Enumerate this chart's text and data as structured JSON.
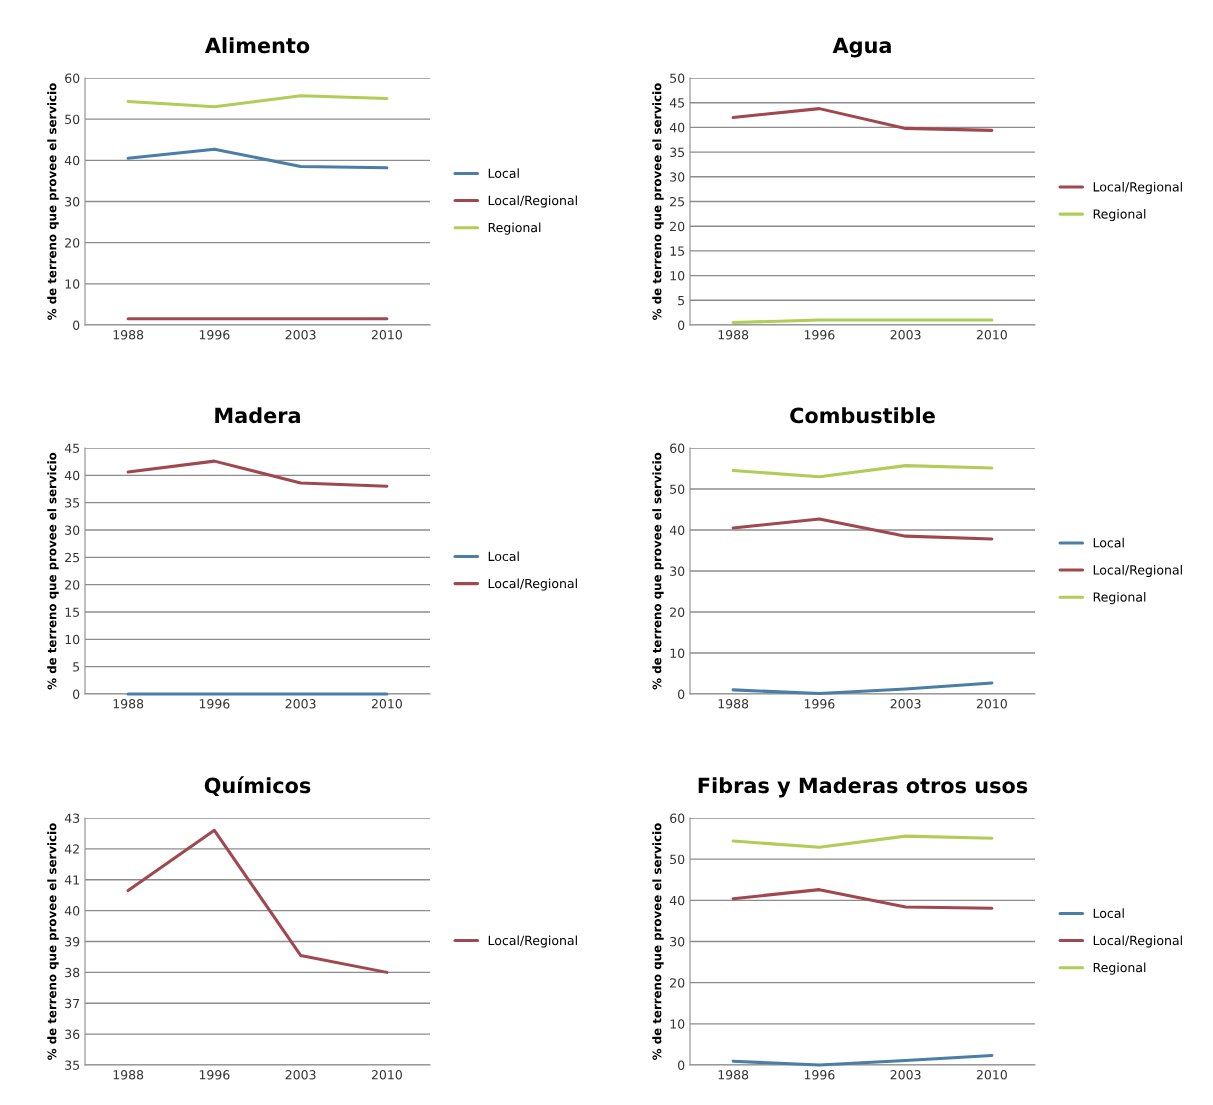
{
  "chart_data": [
    {
      "type": "line",
      "title": "Alimento",
      "ylabel": "% de terreno que provee el servicio",
      "categories": [
        "1988",
        "1996",
        "2003",
        "2010"
      ],
      "ylim": [
        0,
        60
      ],
      "yticks": [
        0,
        10,
        20,
        30,
        40,
        50,
        60
      ],
      "grid": "y",
      "legend": "right",
      "series": [
        {
          "name": "Local",
          "color": "#4a7ea6",
          "values": [
            40.5,
            42.7,
            38.5,
            38.2
          ]
        },
        {
          "name": "Local/Regional",
          "color": "#a0484f",
          "values": [
            1.5,
            1.5,
            1.5,
            1.5
          ]
        },
        {
          "name": "Regional",
          "color": "#b2cc58",
          "values": [
            54.3,
            53,
            55.7,
            55
          ]
        }
      ]
    },
    {
      "type": "line",
      "title": "Agua",
      "ylabel": "% de terreno que provee el servicio",
      "categories": [
        "1988",
        "1996",
        "2003",
        "2010"
      ],
      "ylim": [
        0,
        50
      ],
      "yticks": [
        0,
        5,
        10,
        15,
        20,
        25,
        30,
        35,
        40,
        45,
        50
      ],
      "grid": "y",
      "legend": "right",
      "series": [
        {
          "name": "Local/Regional",
          "color": "#a0484f",
          "values": [
            42,
            43.8,
            39.8,
            39.4
          ]
        },
        {
          "name": "Regional",
          "color": "#b2cc58",
          "values": [
            0.5,
            1,
            1,
            1
          ]
        }
      ]
    },
    {
      "type": "line",
      "title": "Madera",
      "ylabel": "% de terreno que provee el servicio",
      "categories": [
        "1988",
        "1996",
        "2003",
        "2010"
      ],
      "ylim": [
        0,
        45
      ],
      "yticks": [
        0,
        5,
        10,
        15,
        20,
        25,
        30,
        35,
        40,
        45
      ],
      "grid": "y",
      "legend": "right",
      "series": [
        {
          "name": "Local",
          "color": "#4a7ea6",
          "values": [
            0,
            0,
            0,
            0
          ]
        },
        {
          "name": "Local/Regional",
          "color": "#a0484f",
          "values": [
            40.6,
            42.6,
            38.6,
            38
          ]
        }
      ]
    },
    {
      "type": "line",
      "title": "Combustible",
      "ylabel": "% de terreno que provee el servicio",
      "categories": [
        "1988",
        "1996",
        "2003",
        "2010"
      ],
      "ylim": [
        0,
        60
      ],
      "yticks": [
        0,
        10,
        20,
        30,
        40,
        50,
        60
      ],
      "grid": "y",
      "legend": "right",
      "series": [
        {
          "name": "Local",
          "color": "#4a7ea6",
          "values": [
            1,
            0.1,
            1.2,
            2.7
          ]
        },
        {
          "name": "Local/Regional",
          "color": "#a0484f",
          "values": [
            40.5,
            42.7,
            38.5,
            37.8
          ]
        },
        {
          "name": "Regional",
          "color": "#b2cc58",
          "values": [
            54.5,
            53,
            55.7,
            55.1
          ]
        }
      ]
    },
    {
      "type": "line",
      "title": "Químicos",
      "ylabel": "% de terreno que provee el servicio",
      "categories": [
        "1988",
        "1996",
        "2003",
        "2010"
      ],
      "ylim": [
        35,
        43
      ],
      "yticks": [
        35,
        36,
        37,
        38,
        39,
        40,
        41,
        42,
        43
      ],
      "grid": "y",
      "legend": "right",
      "series": [
        {
          "name": "Local/Regional",
          "color": "#a0484f",
          "values": [
            40.65,
            42.6,
            38.55,
            38.0
          ]
        }
      ]
    },
    {
      "type": "line",
      "title": "Fibras y Maderas otros usos",
      "ylabel": "% de terreno que provee el servicio",
      "categories": [
        "1988",
        "1996",
        "2003",
        "2010"
      ],
      "ylim": [
        0,
        60
      ],
      "yticks": [
        0,
        10,
        20,
        30,
        40,
        50,
        60
      ],
      "grid": "y",
      "legend": "right",
      "series": [
        {
          "name": "Local",
          "color": "#4a7ea6",
          "values": [
            0.9,
            0,
            1.1,
            2.3
          ]
        },
        {
          "name": "Local/Regional",
          "color": "#a0484f",
          "values": [
            40.4,
            42.6,
            38.4,
            38.1
          ]
        },
        {
          "name": "Regional",
          "color": "#b2cc58",
          "values": [
            54.4,
            52.9,
            55.6,
            55.1
          ]
        }
      ]
    }
  ]
}
